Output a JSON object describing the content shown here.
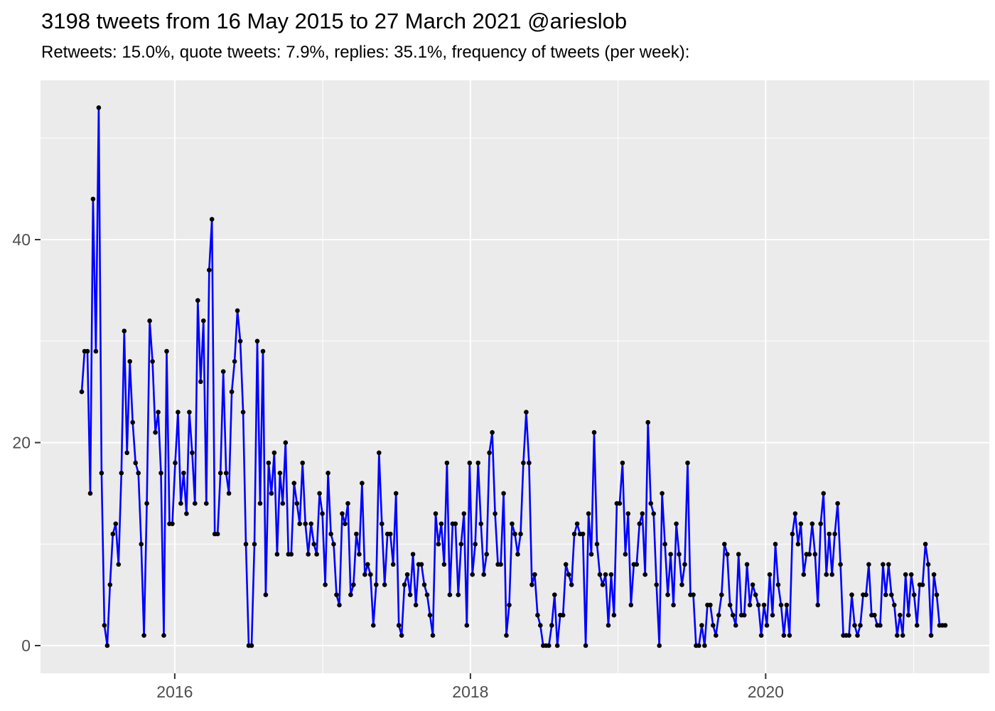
{
  "header": {
    "title": "3198 tweets from 16 May 2015 to 27 March 2021 @arieslob",
    "subtitle": "Retweets: 15.0%, quote tweets: 7.9%, replies: 35.1%, frequency of tweets (per week):"
  },
  "chart_data": {
    "type": "line",
    "title": "3198 tweets from 16 May 2015 to 27 March 2021 @arieslob",
    "subtitle": "Retweets: 15.0%, quote tweets: 7.9%, replies: 35.1%, frequency of tweets (per week):",
    "series_name": "tweets-per-week",
    "interval": "weekly",
    "start_date": "2015-05-16",
    "end_date": "2021-03-27",
    "total_tweets": 3198,
    "xlabel": "",
    "ylabel": "",
    "x_axis": {
      "tick_labels": [
        "2016",
        "2018",
        "2020"
      ],
      "minor_ticks": [
        "2017",
        "2019",
        "2021"
      ]
    },
    "y_axis": {
      "tick_labels": [
        "0",
        "20",
        "40"
      ],
      "tick_values": [
        0,
        20,
        40
      ],
      "minor_tick_values": [
        10,
        30,
        50
      ],
      "range": [
        0,
        55.6
      ]
    },
    "grid": true,
    "legend_position": "none",
    "colors": {
      "line": "#0000FF",
      "point": "#000000",
      "panel_background": "#EBEBEB",
      "gridline": "#FFFFFF",
      "axis_text": "#4D4D4D",
      "tick_mark": "#333333",
      "title_text": "#000000"
    },
    "values": [
      25,
      29,
      29,
      15,
      44,
      29,
      53,
      17,
      2,
      0,
      6,
      11,
      12,
      8,
      17,
      31,
      19,
      28,
      22,
      18,
      17,
      10,
      1,
      14,
      32,
      28,
      21,
      23,
      17,
      1,
      29,
      12,
      12,
      18,
      23,
      14,
      17,
      13,
      23,
      19,
      14,
      34,
      26,
      32,
      14,
      37,
      42,
      11,
      11,
      17,
      27,
      17,
      15,
      25,
      28,
      33,
      30,
      23,
      10,
      0,
      0,
      10,
      30,
      14,
      29,
      5,
      18,
      15,
      19,
      9,
      17,
      14,
      20,
      9,
      9,
      16,
      14,
      12,
      18,
      12,
      9,
      12,
      10,
      9,
      15,
      13,
      6,
      17,
      11,
      10,
      5,
      4,
      13,
      12,
      14,
      5,
      6,
      11,
      9,
      16,
      7,
      8,
      7,
      2,
      6,
      19,
      12,
      6,
      11,
      11,
      8,
      15,
      2,
      1,
      6,
      7,
      5,
      9,
      4,
      8,
      8,
      6,
      5,
      3,
      1,
      13,
      10,
      12,
      8,
      18,
      5,
      12,
      12,
      5,
      10,
      13,
      2,
      18,
      7,
      10,
      18,
      12,
      7,
      9,
      19,
      21,
      13,
      8,
      8,
      15,
      1,
      4,
      12,
      11,
      9,
      11,
      18,
      23,
      18,
      6,
      7,
      3,
      2,
      0,
      0,
      0,
      2,
      5,
      0,
      3,
      3,
      8,
      7,
      6,
      11,
      12,
      11,
      11,
      0,
      13,
      9,
      21,
      10,
      7,
      6,
      7,
      2,
      7,
      3,
      14,
      14,
      18,
      9,
      13,
      4,
      8,
      8,
      12,
      13,
      7,
      22,
      14,
      13,
      6,
      0,
      15,
      10,
      5,
      9,
      4,
      12,
      9,
      6,
      8,
      18,
      5,
      5,
      0,
      0,
      2,
      0,
      4,
      4,
      2,
      1,
      3,
      5,
      10,
      9,
      4,
      3,
      2,
      9,
      3,
      3,
      8,
      4,
      6,
      5,
      4,
      1,
      4,
      2,
      7,
      3,
      10,
      6,
      4,
      1,
      4,
      1,
      11,
      13,
      10,
      12,
      7,
      9,
      9,
      12,
      9,
      4,
      12,
      15,
      7,
      11,
      7,
      11,
      14,
      8,
      1,
      1,
      1,
      5,
      2,
      1,
      2,
      5,
      5,
      8,
      3,
      3,
      2,
      2,
      8,
      5,
      8,
      5,
      4,
      1,
      3,
      1,
      7,
      3,
      7,
      5,
      2,
      6,
      6,
      10,
      8,
      1,
      7,
      5,
      2,
      2,
      2
    ]
  }
}
